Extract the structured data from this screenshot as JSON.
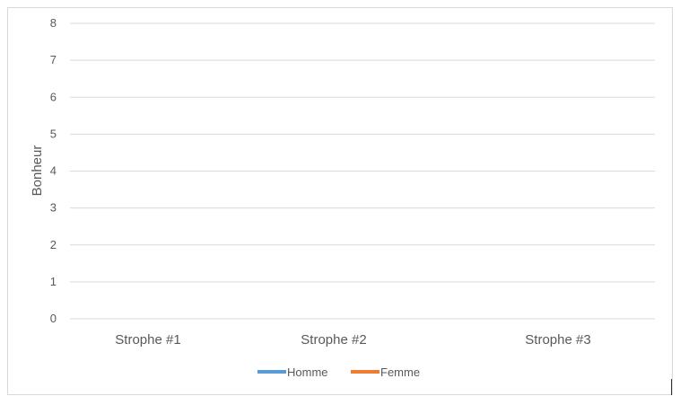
{
  "chart_data": {
    "type": "line",
    "title": "",
    "xlabel": "",
    "ylabel": "Bonheur",
    "categories": [
      "Strophe #1",
      "Strophe #2",
      "Strophe #3"
    ],
    "ylim": [
      0,
      8
    ],
    "yticks": [
      0,
      1,
      2,
      3,
      4,
      5,
      6,
      7,
      8
    ],
    "grid": true,
    "legend_position": "bottom",
    "series": [
      {
        "name": "Homme",
        "color": "#5b9bd5",
        "values": [
          null,
          null,
          null
        ]
      },
      {
        "name": "Femme",
        "color": "#ed7d31",
        "values": [
          null,
          null,
          null
        ]
      }
    ]
  }
}
